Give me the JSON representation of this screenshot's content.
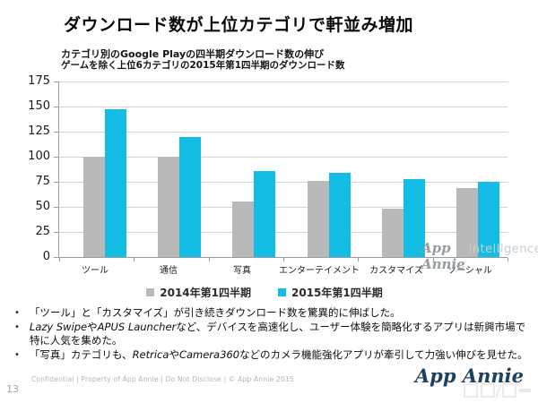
{
  "slide": {
    "title": "ダウンロード数が上位カテゴリで軒並み増加",
    "page_number": "13",
    "footer": "Confidential  |  Property of App Annie  |  Do Not Disclose  |  © App Annie 2015",
    "logo_text": "App Annie"
  },
  "chart_data": {
    "type": "bar",
    "title": "カテゴリ別のGoogle Playの四半期ダウンロード数の伸び",
    "subtitle": "ゲームを除く上位6カテゴリの2015年第1四半期のダウンロード数",
    "categories": [
      "ツール",
      "通信",
      "写真",
      "エンターテイメント",
      "カスタマイズ",
      "ソーシャル"
    ],
    "series": [
      {
        "name": "2014年第1四半期",
        "color": "#b9b9b9",
        "values": [
          100,
          100,
          55,
          76,
          48,
          69
        ]
      },
      {
        "name": "2015年第1四半期",
        "color": "#13bde4",
        "values": [
          147,
          120,
          86,
          84,
          78,
          75
        ]
      }
    ],
    "xlabel": "",
    "ylabel": "",
    "ylim": [
      0,
      175
    ],
    "yticks": [
      175,
      150,
      125,
      100,
      75,
      50,
      25,
      0
    ],
    "grid": true,
    "legend_position": "bottom",
    "watermark_script": "App Annie",
    "watermark_light": "intelligence"
  },
  "bullets": [
    {
      "segments": [
        {
          "text": "「ツール」と「カスタマイズ」が引き続きダウンロード数を驚異的に伸ばした。"
        }
      ]
    },
    {
      "segments": [
        {
          "text": "Lazy Swipe",
          "italic": true
        },
        {
          "text": "や"
        },
        {
          "text": "APUS Launcher",
          "italic": true
        },
        {
          "text": "など、デバイスを高速化し、ユーザー体験を簡略化するアプリは新興市場で特に人気を集めた。"
        }
      ]
    },
    {
      "segments": [
        {
          "text": "「写真」カテゴリも、"
        },
        {
          "text": "Retrica",
          "italic": true
        },
        {
          "text": "や"
        },
        {
          "text": "Camera360",
          "italic": true
        },
        {
          "text": "などのカメラ機能強化アプリが牽引して力強い伸びを見せた。"
        }
      ]
    }
  ]
}
